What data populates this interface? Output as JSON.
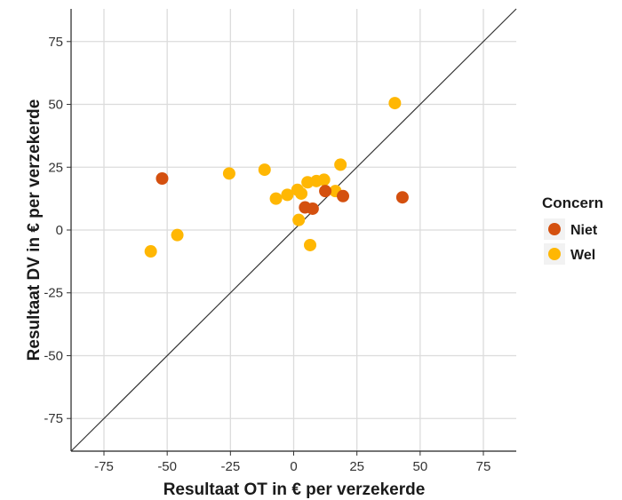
{
  "chart_data": {
    "type": "scatter",
    "xlabel": "Resultaat OT in  €  per verzekerde",
    "ylabel": "Resultaat DV in  €  per verzekerde",
    "xlim": [
      -88,
      88
    ],
    "ylim": [
      -88,
      88
    ],
    "xticks": [
      -75,
      -50,
      -25,
      0,
      25,
      50,
      75
    ],
    "yticks": [
      -75,
      -50,
      -25,
      0,
      25,
      50,
      75
    ],
    "x_tick_labels": [
      "-75",
      "-50",
      "-25",
      "0",
      "25",
      "50",
      "75"
    ],
    "y_tick_labels": [
      "-75",
      "-50",
      "-25",
      "0",
      "25",
      "50",
      "75"
    ],
    "grid": true,
    "reference_line": "y = x",
    "legend": {
      "title": "Concern",
      "position": "right",
      "entries": [
        {
          "label": "Niet",
          "color": "#D4500F"
        },
        {
          "label": "Wel",
          "color": "#FFB703"
        }
      ]
    },
    "series": [
      {
        "name": "Niet",
        "color": "#D4500F",
        "points": [
          {
            "x": -52,
            "y": 20.5
          },
          {
            "x": 4.5,
            "y": 9
          },
          {
            "x": 7.5,
            "y": 8.5
          },
          {
            "x": 12.5,
            "y": 15.5
          },
          {
            "x": 19.5,
            "y": 13.5
          },
          {
            "x": 43,
            "y": 13
          }
        ]
      },
      {
        "name": "Wel",
        "color": "#FFB703",
        "points": [
          {
            "x": -56.5,
            "y": -8.5
          },
          {
            "x": -46,
            "y": -2
          },
          {
            "x": -25.5,
            "y": 22.5
          },
          {
            "x": -11.5,
            "y": 24
          },
          {
            "x": -7,
            "y": 12.5
          },
          {
            "x": -2.5,
            "y": 14
          },
          {
            "x": 1.5,
            "y": 16
          },
          {
            "x": 2,
            "y": 4
          },
          {
            "x": 3,
            "y": 14.5
          },
          {
            "x": 5.5,
            "y": 19
          },
          {
            "x": 6.5,
            "y": -6
          },
          {
            "x": 9,
            "y": 19.5
          },
          {
            "x": 12,
            "y": 20
          },
          {
            "x": 16.5,
            "y": 15.5
          },
          {
            "x": 18.5,
            "y": 26
          },
          {
            "x": 40,
            "y": 50.5
          }
        ]
      }
    ]
  }
}
